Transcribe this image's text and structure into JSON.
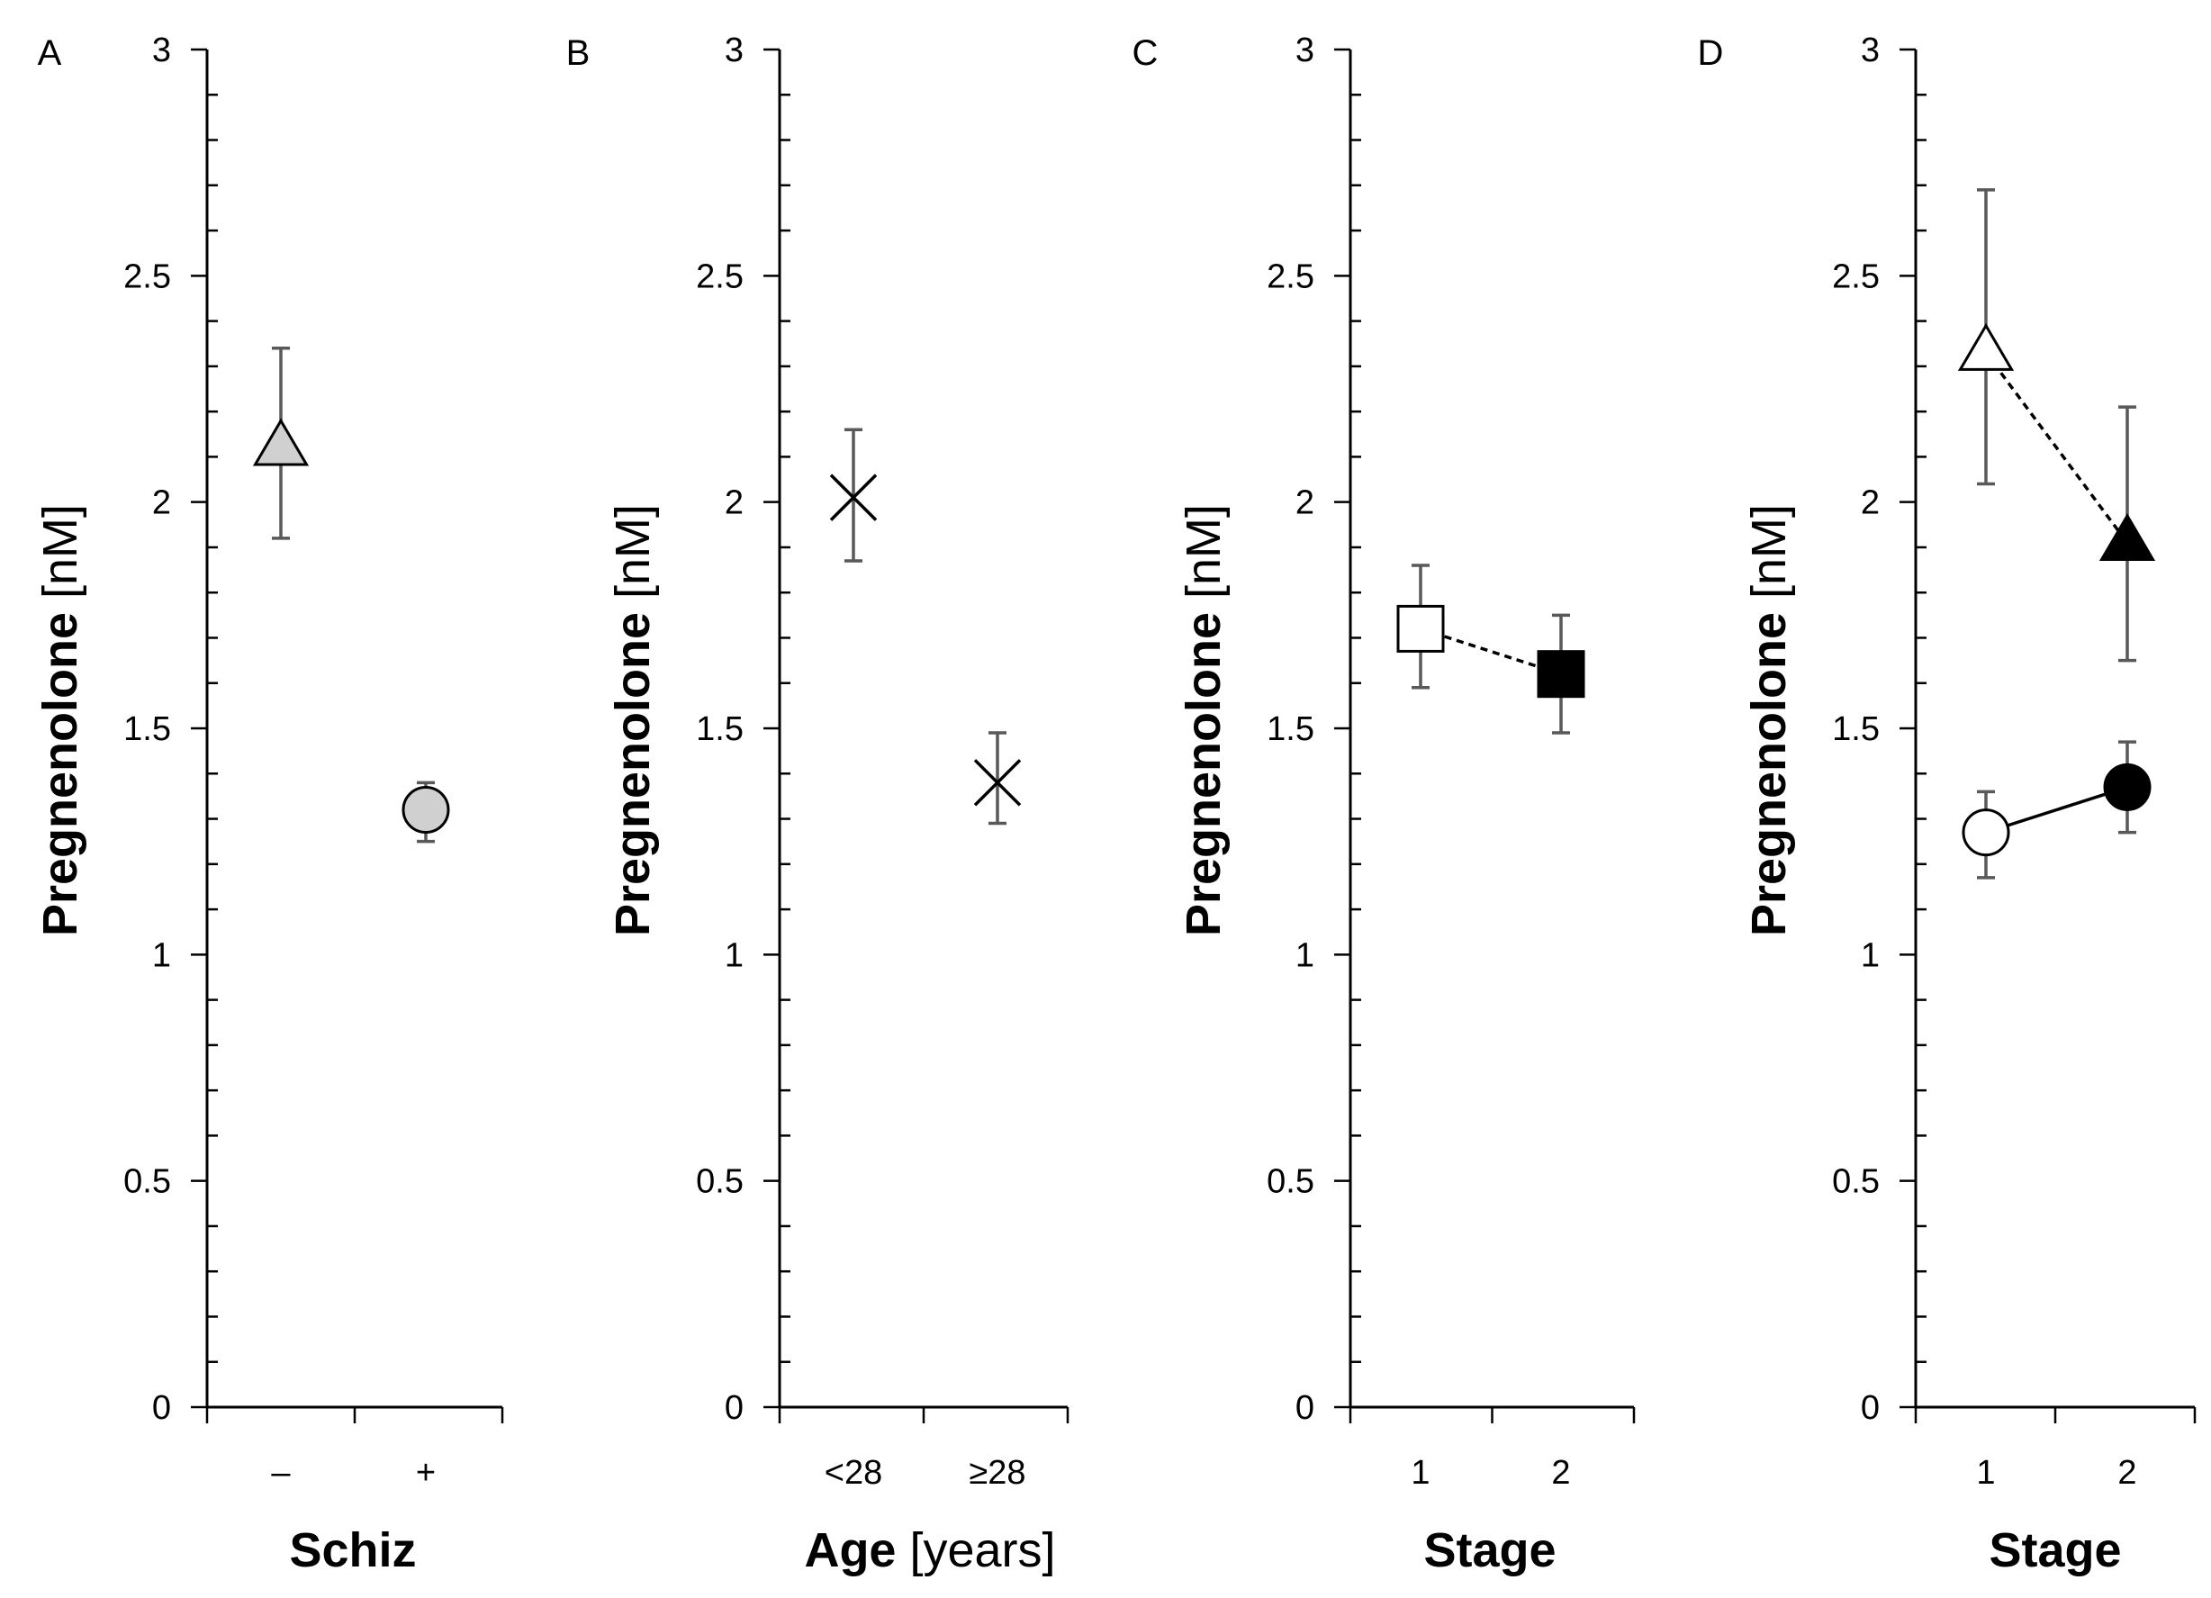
{
  "chart_data": [
    {
      "panel": "A",
      "type": "scatter",
      "ylabel_bold": "Pregnenolone",
      "ylabel_unit": " [nM]",
      "xlabel_bold": "Schiz",
      "xlabel_unit": "",
      "ylim": [
        0,
        3
      ],
      "y_ticks": [
        "0",
        "0.5",
        "1",
        "1.5",
        "2",
        "2.5",
        "3"
      ],
      "categories": [
        "–",
        "+"
      ],
      "series": [
        {
          "name": "schiz-negative",
          "marker": "triangle",
          "fill": "#d0d0d0",
          "line": "none",
          "points": [
            {
              "x": 0,
              "y": 2.12,
              "err_low": 1.92,
              "err_high": 2.34
            }
          ]
        },
        {
          "name": "schiz-positive",
          "marker": "circle",
          "fill": "#d0d0d0",
          "line": "none",
          "points": [
            {
              "x": 1,
              "y": 1.32,
              "err_low": 1.25,
              "err_high": 1.38
            }
          ]
        }
      ]
    },
    {
      "panel": "B",
      "type": "scatter",
      "ylabel_bold": "Pregnenolone",
      "ylabel_unit": " [nM]",
      "xlabel_bold": "Age",
      "xlabel_unit": " [years]",
      "ylim": [
        0,
        3
      ],
      "y_ticks": [
        "0",
        "0.5",
        "1",
        "1.5",
        "2",
        "2.5",
        "3"
      ],
      "categories": [
        "<28",
        "≥28"
      ],
      "series": [
        {
          "name": "age-under-28",
          "marker": "x",
          "fill": "none",
          "line": "none",
          "points": [
            {
              "x": 0,
              "y": 2.01,
              "err_low": 1.87,
              "err_high": 2.16
            }
          ]
        },
        {
          "name": "age-28-plus",
          "marker": "x",
          "fill": "none",
          "line": "none",
          "points": [
            {
              "x": 1,
              "y": 1.38,
              "err_low": 1.29,
              "err_high": 1.49
            }
          ]
        }
      ]
    },
    {
      "panel": "C",
      "type": "line",
      "ylabel_bold": "Pregnenolone",
      "ylabel_unit": " [nM]",
      "xlabel_bold": "Stage",
      "xlabel_unit": "",
      "ylim": [
        0,
        3
      ],
      "y_ticks": [
        "0",
        "0.5",
        "1",
        "1.5",
        "2",
        "2.5",
        "3"
      ],
      "categories": [
        "1",
        "2"
      ],
      "series": [
        {
          "name": "stage-squares",
          "marker": "square",
          "fill": "per-point",
          "line": "dashed",
          "points": [
            {
              "x": 0,
              "y": 1.72,
              "err_low": 1.59,
              "err_high": 1.86,
              "fill": "#ffffff"
            },
            {
              "x": 1,
              "y": 1.62,
              "err_low": 1.49,
              "err_high": 1.75,
              "fill": "#000000"
            }
          ]
        }
      ]
    },
    {
      "panel": "D",
      "type": "line",
      "ylabel_bold": "Pregnenolone",
      "ylabel_unit": " [nM]",
      "xlabel_bold": "Stage",
      "xlabel_unit": "",
      "ylim": [
        0,
        3
      ],
      "y_ticks": [
        "0",
        "0.5",
        "1",
        "1.5",
        "2",
        "2.5",
        "3"
      ],
      "categories": [
        "1",
        "2"
      ],
      "series": [
        {
          "name": "stage-triangles",
          "marker": "triangle",
          "fill": "per-point",
          "line": "dashed",
          "points": [
            {
              "x": 0,
              "y": 2.33,
              "err_low": 2.04,
              "err_high": 2.69,
              "fill": "#ffffff"
            },
            {
              "x": 1,
              "y": 1.91,
              "err_low": 1.65,
              "err_high": 2.21,
              "fill": "#000000"
            }
          ]
        },
        {
          "name": "stage-circles",
          "marker": "circle",
          "fill": "per-point",
          "line": "solid",
          "points": [
            {
              "x": 0,
              "y": 1.27,
              "err_low": 1.17,
              "err_high": 1.36,
              "fill": "#ffffff"
            },
            {
              "x": 1,
              "y": 1.37,
              "err_low": 1.27,
              "err_high": 1.47,
              "fill": "#000000"
            }
          ]
        }
      ]
    }
  ]
}
